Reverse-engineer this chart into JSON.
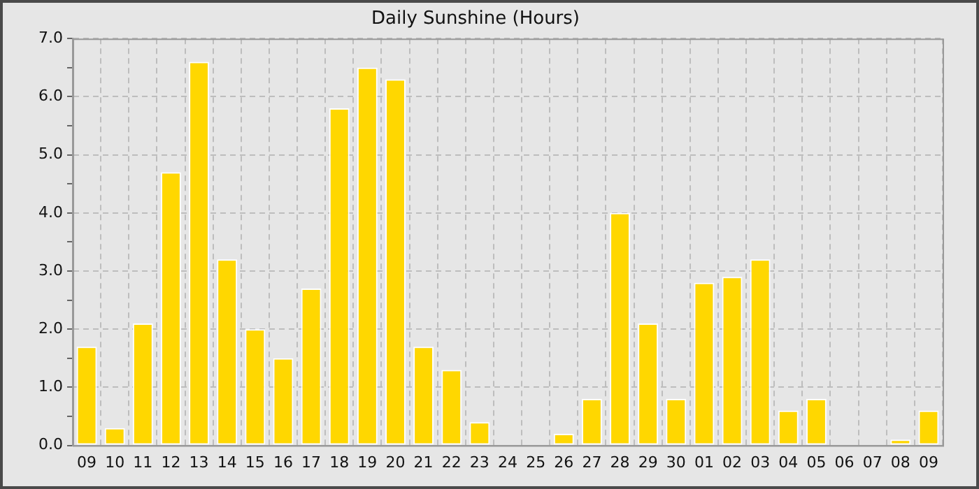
{
  "chart_data": {
    "type": "bar",
    "title": "Daily Sunshine (Hours)",
    "categories": [
      "09",
      "10",
      "11",
      "12",
      "13",
      "14",
      "15",
      "16",
      "17",
      "18",
      "19",
      "20",
      "21",
      "22",
      "23",
      "24",
      "25",
      "26",
      "27",
      "28",
      "29",
      "30",
      "01",
      "02",
      "03",
      "04",
      "05",
      "06",
      "07",
      "08",
      "09"
    ],
    "values": [
      1.7,
      0.3,
      2.1,
      4.7,
      6.6,
      3.2,
      2.0,
      1.5,
      2.7,
      5.8,
      6.5,
      6.3,
      1.7,
      1.3,
      0.4,
      0,
      0,
      0.2,
      0.8,
      4.0,
      2.1,
      0.8,
      2.8,
      2.9,
      3.2,
      0.6,
      0.8,
      0,
      0,
      0.1,
      0.6
    ],
    "color": "#ffd700",
    "ylim": [
      0,
      7
    ],
    "yticks": [
      {
        "value": 0,
        "label": "0.0"
      },
      {
        "value": 0.5,
        "label": null
      },
      {
        "value": 1,
        "label": "1.0"
      },
      {
        "value": 1.5,
        "label": null
      },
      {
        "value": 2,
        "label": "2.0"
      },
      {
        "value": 2.5,
        "label": null
      },
      {
        "value": 3,
        "label": "3.0"
      },
      {
        "value": 3.5,
        "label": null
      },
      {
        "value": 4,
        "label": "4.0"
      },
      {
        "value": 4.5,
        "label": null
      },
      {
        "value": 5,
        "label": "5.0"
      },
      {
        "value": 5.5,
        "label": null
      },
      {
        "value": 6,
        "label": "6.0"
      },
      {
        "value": 6.5,
        "label": null
      },
      {
        "value": 7,
        "label": "7.0"
      }
    ],
    "grid": true,
    "legend": false
  }
}
